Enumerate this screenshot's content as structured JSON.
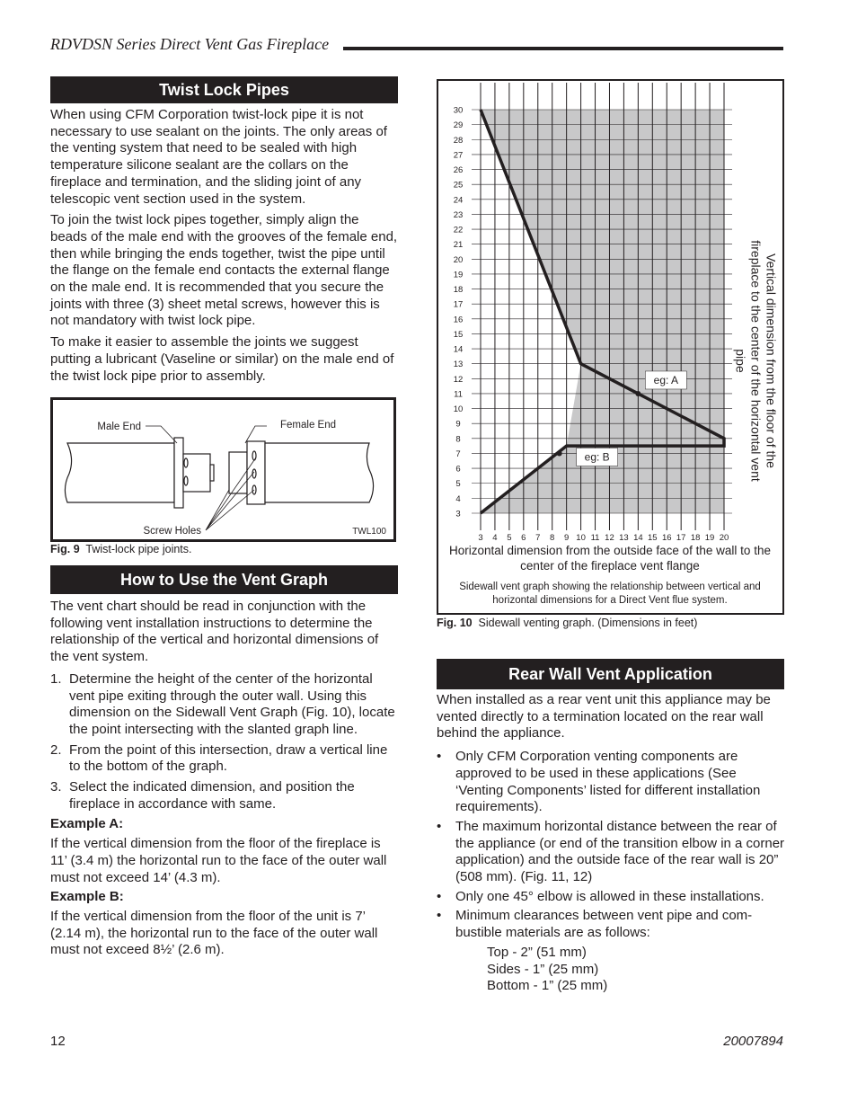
{
  "header": {
    "title": "RDVDSN Series Direct Vent Gas Fireplace"
  },
  "twist_lock": {
    "heading": "Twist Lock Pipes",
    "paragraphs": [
      "When using CFM Corporation twist-lock pipe it is not necessary to use sealant on the joints. The only areas of the venting system that need to be  sealed with high temperature silicone sealant are the collars on the fireplace and termination, and the sliding joint of any telescopic vent section used in the system.",
      "To join the twist lock pipes together, simply align the beads of the male end with the grooves of the female end, then while bringing the ends together, twist the pipe until the flange on the female end contacts the external flange on the male end. It is recommended that you secure the joints with three (3) sheet metal screws, however this is not mandatory with twist lock pipe.",
      "To make it easier to assemble the joints we suggest putting a lubricant (Vaseline or similar) on the male end of the twist lock pipe prior to assembly."
    ]
  },
  "figure9": {
    "labels": {
      "male_end": "Male End",
      "female_end": "Female End",
      "screw_holes": "Screw Holes",
      "code": "TWL100"
    },
    "caption_number": "Fig. 9",
    "caption": "Twist-lock pipe joints."
  },
  "vent_graph": {
    "heading": "How to Use the Vent Graph",
    "intro": "The vent chart should be read in conjunction with the following vent installation instructions to determine the relationship of the vertical and horizontal dimensions of the vent system.",
    "steps": [
      {
        "number": "1.",
        "text": "Determine the height of the center of the horizontal vent pipe exiting through the outer wall.  Using this dimension on the Sidewall Vent Graph (Fig. 10), locate the point intersecting with the slanted graph line."
      },
      {
        "number": "2.",
        "text": "From the point of this intersection, draw a vertical line to the bottom of the graph."
      },
      {
        "number": "3.",
        "text": "Select the indicated dimension, and position the fireplace in accordance with same."
      }
    ],
    "example_a": {
      "label": "Example A:",
      "text": "If the vertical dimension from the floor of the fireplace is 11’ (3.4 m) the horizontal run to the face of the outer wall must not exceed 14’ (4.3 m)."
    },
    "example_b": {
      "label": "Example B:",
      "text": "If the vertical dimension from the floor of the unit is 7’ (2.14 m), the horizontal run to the face of the outer wall must not exceed 8½’ (2.6 m)."
    }
  },
  "chart_data": {
    "type": "line",
    "x_label": "Horizontal dimension from the outside face of the wall to the center of the fireplace vent flange",
    "y_label": "Vertical  dimension from the floor of the fireplace to the center of the horizontal vent pipe",
    "caption": "Sidewall vent graph showing the relationship between vertical and horizontal dimensions for a Direct Vent flue system.",
    "xlim": [
      3,
      20
    ],
    "ylim": [
      3,
      30
    ],
    "xticks": [
      3,
      4,
      5,
      6,
      7,
      8,
      9,
      10,
      11,
      12,
      13,
      14,
      15,
      16,
      17,
      18,
      19,
      20
    ],
    "yticks": [
      3,
      4,
      5,
      6,
      7,
      8,
      9,
      10,
      11,
      12,
      13,
      14,
      15,
      16,
      17,
      18,
      19,
      20,
      21,
      22,
      23,
      24,
      25,
      26,
      27,
      28,
      29,
      30
    ],
    "grid": true,
    "series": [
      {
        "color": "#231f20",
        "x": [
          3,
          10,
          20,
          20,
          9,
          3
        ],
        "values": [
          30,
          13,
          8,
          7.5,
          7.5,
          3
        ]
      }
    ],
    "annotations": [
      {
        "text": "eg: A",
        "x": 14,
        "y": 11
      },
      {
        "text": "eg: B",
        "x": 8.5,
        "y": 7
      }
    ]
  },
  "figure10": {
    "caption_number": "Fig. 10",
    "caption": "Sidewall venting graph. (Dimensions in feet)"
  },
  "rear_wall": {
    "heading": "Rear Wall Vent Application",
    "intro": "When installed as a rear vent unit this appliance may be vented directly to a termination located on the rear wall behind the appliance.",
    "bullets": [
      "Only CFM Corporation venting components are approved to be used in these applications (See ‘Venting Components’ listed for different installation requirements).",
      "The maximum horizontal distance between the rear of the appliance (or end of the transition elbow in a corner application) and the outside face of the rear wall is 20” (508 mm). (Fig. 11, 12)",
      "Only one 45° elbow is allowed in these installations.",
      "Minimum clearances between vent pipe and com-bustible materials are as follows:"
    ],
    "clearances": [
      "Top - 2” (51 mm)",
      "Sides - 1” (25 mm)",
      "Bottom - 1” (25 mm)"
    ]
  },
  "footer": {
    "page": "12",
    "doc_number": "20007894"
  }
}
